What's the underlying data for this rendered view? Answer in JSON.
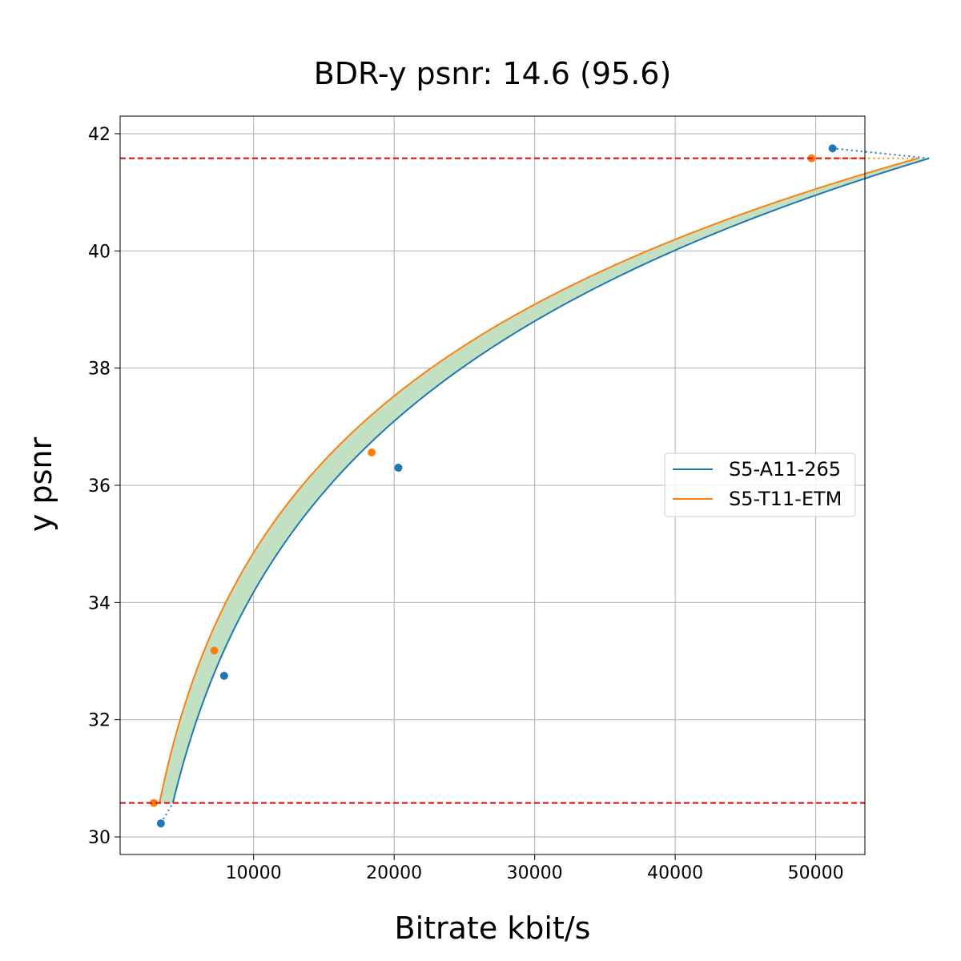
{
  "chart_data": {
    "type": "line",
    "title": "BDR-y psnr: 14.6 (95.6)",
    "xlabel": "Bitrate kbit/s",
    "ylabel": "y psnr",
    "xlim": [
      500,
      53500
    ],
    "ylim": [
      29.7,
      42.3
    ],
    "xticks": [
      10000,
      20000,
      30000,
      40000,
      50000
    ],
    "yticks": [
      30,
      32,
      34,
      36,
      38,
      40,
      42
    ],
    "grid": true,
    "legend_position": "center-right",
    "reference_lines": [
      30.58,
      41.58
    ],
    "series": [
      {
        "name": "S5-A11-265",
        "color": "#1f77b4",
        "points": [
          {
            "x": 3400,
            "y": 30.23
          },
          {
            "x": 7900,
            "y": 32.75
          },
          {
            "x": 20300,
            "y": 36.3
          },
          {
            "x": 51200,
            "y": 41.75
          }
        ]
      },
      {
        "name": "S5-T11-ETM",
        "color": "#ff7f0e",
        "points": [
          {
            "x": 2900,
            "y": 30.58
          },
          {
            "x": 7200,
            "y": 33.18
          },
          {
            "x": 18400,
            "y": 36.56
          },
          {
            "x": 49700,
            "y": 41.58
          }
        ]
      }
    ],
    "fill_color": "#c2e0c2",
    "reference_line_color": "#e8000b"
  }
}
